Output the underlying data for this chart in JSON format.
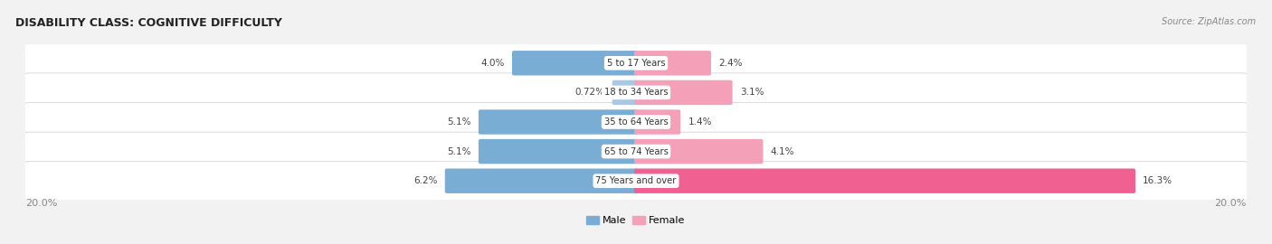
{
  "title": "DISABILITY CLASS: COGNITIVE DIFFICULTY",
  "source": "Source: ZipAtlas.com",
  "categories": [
    "5 to 17 Years",
    "18 to 34 Years",
    "35 to 64 Years",
    "65 to 74 Years",
    "75 Years and over"
  ],
  "male_values": [
    4.0,
    0.72,
    5.1,
    5.1,
    6.2
  ],
  "female_values": [
    2.4,
    3.1,
    1.4,
    4.1,
    16.3
  ],
  "male_colors": [
    "#7aadd4",
    "#a8c8e8",
    "#7aadd4",
    "#7aadd4",
    "#7aadd4"
  ],
  "female_colors": [
    "#f4a0b8",
    "#f4a0b8",
    "#f4a0b8",
    "#f4a0b8",
    "#f06090"
  ],
  "max_val": 20.0,
  "bg_color": "#f2f2f2",
  "row_bg_color": "#e8e8e8",
  "label_color": "#444444",
  "title_color": "#222222",
  "axis_label_color": "#888888",
  "legend_male_color": "#7aadd4",
  "legend_female_color": "#f4a0b8"
}
